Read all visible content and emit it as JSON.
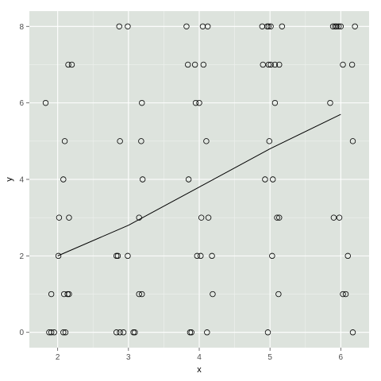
{
  "chart_data": {
    "type": "scatter",
    "xlabel": "x",
    "ylabel": "y",
    "xlim": [
      1.6,
      6.4
    ],
    "ylim": [
      -0.4,
      8.4
    ],
    "x_ticks": [
      2,
      3,
      4,
      5,
      6
    ],
    "y_ticks": [
      0,
      2,
      4,
      6,
      8
    ],
    "x_minor_ticks": [
      2.5,
      3.5,
      4.5,
      5.5
    ],
    "y_minor_ticks": [
      1,
      3,
      5,
      7
    ],
    "grid": true,
    "colors": {
      "panel_background": "#dde3dd",
      "grid_major": "#ffffff",
      "grid_minor": "#eef1ee",
      "points": "#000000",
      "line": "#000000",
      "tick_labels": "#4d4d4d"
    },
    "points": [
      [
        1.88,
        0
      ],
      [
        1.91,
        0
      ],
      [
        1.95,
        0
      ],
      [
        2.08,
        0
      ],
      [
        2.11,
        0
      ],
      [
        2.83,
        0
      ],
      [
        2.88,
        0
      ],
      [
        2.93,
        0
      ],
      [
        3.07,
        0
      ],
      [
        3.09,
        0
      ],
      [
        3.87,
        0
      ],
      [
        3.89,
        0
      ],
      [
        4.11,
        0
      ],
      [
        4.97,
        0
      ],
      [
        6.17,
        0
      ],
      [
        1.91,
        1
      ],
      [
        2.09,
        1
      ],
      [
        2.14,
        1
      ],
      [
        2.16,
        1
      ],
      [
        3.15,
        1
      ],
      [
        3.19,
        1
      ],
      [
        4.19,
        1
      ],
      [
        5.12,
        1
      ],
      [
        6.03,
        1
      ],
      [
        6.07,
        1
      ],
      [
        2.01,
        2
      ],
      [
        2.83,
        2
      ],
      [
        2.85,
        2
      ],
      [
        2.99,
        2
      ],
      [
        3.97,
        2
      ],
      [
        4.02,
        2
      ],
      [
        4.18,
        2
      ],
      [
        5.03,
        2
      ],
      [
        6.1,
        2
      ],
      [
        2.02,
        3
      ],
      [
        2.16,
        3
      ],
      [
        3.15,
        3
      ],
      [
        4.03,
        3
      ],
      [
        4.13,
        3
      ],
      [
        5.1,
        3
      ],
      [
        5.13,
        3
      ],
      [
        5.9,
        3
      ],
      [
        5.98,
        3
      ],
      [
        2.08,
        4
      ],
      [
        3.2,
        4
      ],
      [
        3.85,
        4
      ],
      [
        4.93,
        4
      ],
      [
        5.04,
        4
      ],
      [
        2.1,
        5
      ],
      [
        2.88,
        5
      ],
      [
        3.18,
        5
      ],
      [
        4.1,
        5
      ],
      [
        4.99,
        5
      ],
      [
        6.17,
        5
      ],
      [
        1.83,
        6
      ],
      [
        3.19,
        6
      ],
      [
        3.95,
        6
      ],
      [
        4.0,
        6
      ],
      [
        5.07,
        6
      ],
      [
        5.85,
        6
      ],
      [
        2.15,
        7
      ],
      [
        2.2,
        7
      ],
      [
        3.84,
        7
      ],
      [
        3.94,
        7
      ],
      [
        4.06,
        7
      ],
      [
        4.9,
        7
      ],
      [
        4.98,
        7
      ],
      [
        5.01,
        7
      ],
      [
        5.07,
        7
      ],
      [
        5.13,
        7
      ],
      [
        6.03,
        7
      ],
      [
        6.16,
        7
      ],
      [
        2.87,
        8
      ],
      [
        2.99,
        8
      ],
      [
        3.82,
        8
      ],
      [
        4.05,
        8
      ],
      [
        4.12,
        8
      ],
      [
        4.89,
        8
      ],
      [
        4.96,
        8
      ],
      [
        4.98,
        8
      ],
      [
        5.01,
        8
      ],
      [
        5.17,
        8
      ],
      [
        5.89,
        8
      ],
      [
        5.92,
        8
      ],
      [
        5.94,
        8
      ],
      [
        5.97,
        8
      ],
      [
        6.0,
        8
      ],
      [
        6.2,
        8
      ]
    ],
    "line": [
      [
        2.0,
        2.0
      ],
      [
        3.0,
        2.8
      ],
      [
        4.0,
        3.8
      ],
      [
        5.0,
        4.8
      ],
      [
        6.0,
        5.7
      ]
    ]
  }
}
